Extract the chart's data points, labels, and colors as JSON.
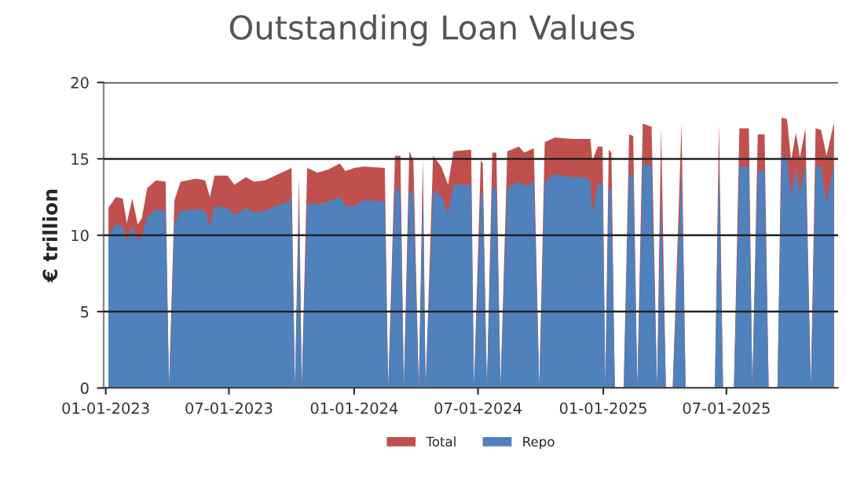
{
  "chart_data": {
    "type": "area",
    "title": "Outstanding Loan Values",
    "ylabel": "€ trillion",
    "x": [
      "2023-01-05",
      "2023-01-16",
      "2023-01-26",
      "2023-02-01",
      "2023-02-09",
      "2023-02-17",
      "2023-02-23",
      "2023-03-03",
      "2023-03-16",
      "2023-03-30",
      "2023-04-04",
      "2023-04-12",
      "2023-04-21",
      "2023-05-13",
      "2023-05-27",
      "2023-06-03",
      "2023-06-10",
      "2023-06-29",
      "2023-07-09",
      "2023-07-26",
      "2023-08-07",
      "2023-08-23",
      "2023-09-07",
      "2023-10-01",
      "2023-10-06",
      "2023-10-12",
      "2023-10-16",
      "2023-10-24",
      "2023-11-08",
      "2023-11-24",
      "2023-12-11",
      "2023-12-19",
      "2024-01-01",
      "2024-01-15",
      "2024-02-15",
      "2024-02-20",
      "2024-03-01",
      "2024-03-09",
      "2024-03-14",
      "2024-03-22",
      "2024-03-28",
      "2024-04-05",
      "2024-04-11",
      "2024-04-15",
      "2024-04-26",
      "2024-05-08",
      "2024-05-18",
      "2024-05-26",
      "2024-06-21",
      "2024-06-25",
      "2024-07-05",
      "2024-07-08",
      "2024-07-14",
      "2024-07-22",
      "2024-07-28",
      "2024-08-03",
      "2024-08-13",
      "2024-08-30",
      "2024-09-07",
      "2024-09-21",
      "2024-09-29",
      "2024-10-07",
      "2024-10-22",
      "2024-11-17",
      "2024-12-02",
      "2024-12-13",
      "2024-12-16",
      "2024-12-24",
      "2024-12-31",
      "2025-01-04",
      "2025-01-09",
      "2025-01-13",
      "2025-01-18",
      "2025-01-31",
      "2025-02-08",
      "2025-02-14",
      "2025-02-20",
      "2025-02-28",
      "2025-03-13",
      "2025-03-21",
      "2025-03-27",
      "2025-04-03",
      "2025-04-13",
      "2025-04-26",
      "2025-05-02",
      "2025-06-14",
      "2025-06-20",
      "2025-06-26",
      "2025-07-12",
      "2025-07-20",
      "2025-08-03",
      "2025-08-08",
      "2025-08-16",
      "2025-08-26",
      "2025-09-01",
      "2025-09-14",
      "2025-09-20",
      "2025-09-28",
      "2025-10-04",
      "2025-10-11",
      "2025-10-17",
      "2025-10-25",
      "2025-11-02",
      "2025-11-09",
      "2025-11-17",
      "2025-11-25",
      "2025-12-06"
    ],
    "series": [
      {
        "name": "Total",
        "color": "#c0504d",
        "values": [
          11.8,
          12.5,
          12.4,
          10.8,
          12.4,
          10.7,
          11.1,
          13.1,
          13.6,
          13.5,
          0,
          12.3,
          13.5,
          13.7,
          13.6,
          12.5,
          13.9,
          13.9,
          13.3,
          13.8,
          13.5,
          13.6,
          13.9,
          14.4,
          0,
          13.9,
          0,
          14.4,
          14.1,
          14.3,
          14.7,
          14.2,
          14.4,
          14.5,
          14.4,
          0,
          15.2,
          15.2,
          0,
          15.5,
          14.9,
          0,
          15.1,
          0,
          15.2,
          14.5,
          13.3,
          15.5,
          15.6,
          0,
          14.9,
          14.7,
          0,
          15.4,
          15.4,
          0,
          15.5,
          15.8,
          15.4,
          15.7,
          0,
          16.1,
          16.4,
          16.3,
          16.3,
          16.3,
          14.9,
          15.8,
          15.8,
          0,
          15.6,
          15.4,
          0,
          0,
          16.6,
          16.5,
          0,
          17.3,
          17.1,
          0,
          17.1,
          0,
          0,
          17.3,
          0,
          0,
          17.3,
          0,
          0,
          17.0,
          17.0,
          0,
          16.6,
          16.6,
          0,
          0,
          17.7,
          17.6,
          14.9,
          16.7,
          15.1,
          17.0,
          0,
          17.0,
          16.9,
          15.2,
          17.4
        ]
      },
      {
        "name": "Repo",
        "color": "#4f81bd",
        "values": [
          10.0,
          10.7,
          10.6,
          9.6,
          10.6,
          9.7,
          9.9,
          11.2,
          11.7,
          11.6,
          0,
          10.7,
          11.6,
          11.7,
          11.6,
          10.6,
          11.9,
          11.8,
          11.3,
          11.8,
          11.5,
          11.6,
          11.9,
          12.3,
          0,
          11.8,
          0,
          12.1,
          12.0,
          12.2,
          12.5,
          11.9,
          11.9,
          12.3,
          12.2,
          0,
          13.0,
          13.0,
          0,
          13.0,
          12.6,
          0,
          12.8,
          0,
          12.9,
          12.6,
          11.4,
          13.3,
          13.3,
          0,
          12.8,
          12.7,
          0,
          13.1,
          13.1,
          0,
          13.1,
          13.5,
          13.2,
          13.5,
          0,
          13.5,
          14.0,
          13.8,
          13.8,
          13.6,
          11.4,
          13.3,
          13.5,
          0,
          13.1,
          12.9,
          0,
          0,
          14.0,
          13.9,
          0,
          14.7,
          14.5,
          0,
          12.8,
          0,
          0,
          14.5,
          0,
          0,
          14.9,
          0,
          0,
          14.5,
          14.5,
          0,
          14.2,
          14.2,
          0,
          0,
          15.2,
          15.1,
          12.5,
          14.4,
          12.8,
          14.7,
          0,
          14.5,
          14.5,
          12.1,
          14.7
        ]
      }
    ],
    "xlim": [
      "2022-12-29",
      "2025-12-12"
    ],
    "xticks": [
      {
        "value": "2023-01-01",
        "label": "01-01-2023"
      },
      {
        "value": "2023-07-01",
        "label": "07-01-2023"
      },
      {
        "value": "2024-01-01",
        "label": "01-01-2024"
      },
      {
        "value": "2024-07-01",
        "label": "07-01-2024"
      },
      {
        "value": "2025-01-01",
        "label": "01-01-2025"
      },
      {
        "value": "2025-07-01",
        "label": "07-01-2025"
      }
    ],
    "ylim": [
      0,
      20
    ],
    "yticks": [
      0,
      5,
      10,
      15,
      20
    ],
    "grid": "y",
    "legend": "bottom"
  }
}
